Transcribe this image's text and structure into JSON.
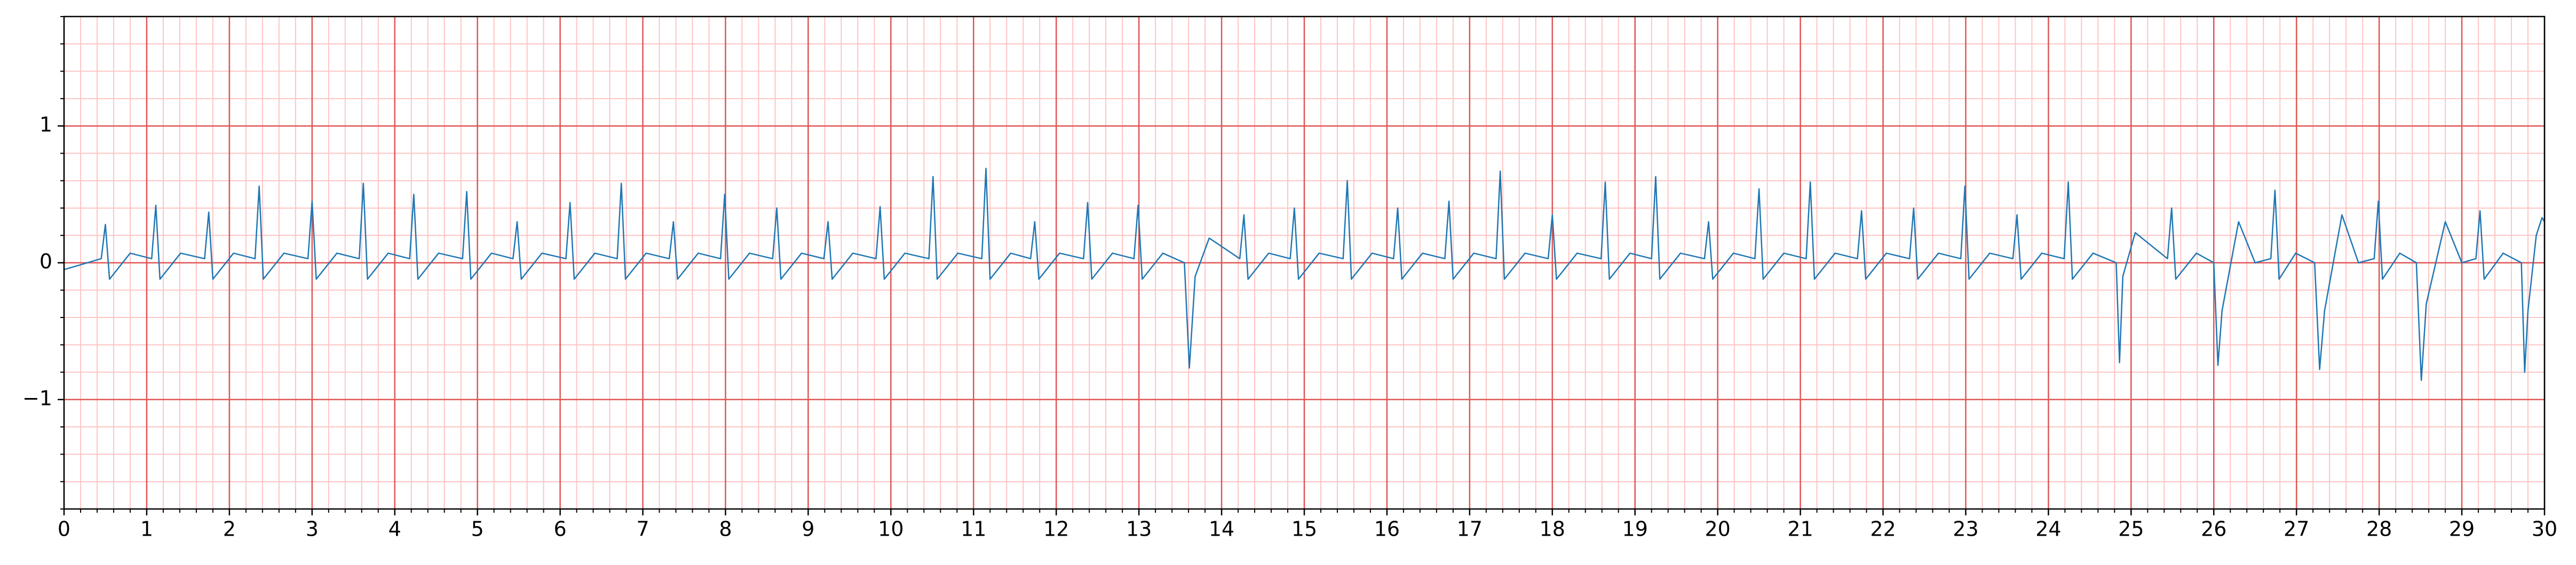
{
  "chart_data": {
    "type": "line",
    "color": "#1f77b4",
    "xlim": [
      0,
      30
    ],
    "ylim": [
      -1.8,
      1.8
    ],
    "xticks": [
      0,
      1,
      2,
      3,
      4,
      5,
      6,
      7,
      8,
      9,
      10,
      11,
      12,
      13,
      14,
      15,
      16,
      17,
      18,
      19,
      20,
      21,
      22,
      23,
      24,
      25,
      26,
      27,
      28,
      29,
      30
    ],
    "yticks": [
      {
        "value": -1,
        "label": "−1"
      },
      0,
      1
    ],
    "grid": true,
    "grid_color": "#e05555",
    "minor_grid": {
      "x": 0.2,
      "y": 0.2,
      "color": "#ffc4c4"
    },
    "x": [
      0,
      0.45,
      0.5,
      0.55,
      0.8,
      1.06,
      1.11,
      1.16,
      1.41,
      1.7,
      1.75,
      1.8,
      2.05,
      2.31,
      2.36,
      2.41,
      2.66,
      2.95,
      3,
      3.05,
      3.3,
      3.57,
      3.62,
      3.67,
      3.92,
      4.18,
      4.23,
      4.28,
      4.53,
      4.82,
      4.87,
      4.92,
      5.17,
      5.43,
      5.48,
      5.53,
      5.78,
      6.07,
      6.12,
      6.17,
      6.42,
      6.69,
      6.74,
      6.79,
      7.04,
      7.32,
      7.37,
      7.42,
      7.67,
      7.94,
      7.99,
      8.04,
      8.29,
      8.57,
      8.62,
      8.67,
      8.92,
      9.19,
      9.24,
      9.29,
      9.54,
      9.82,
      9.87,
      9.92,
      10.17,
      10.46,
      10.51,
      10.56,
      10.81,
      11.1,
      11.15,
      11.2,
      11.45,
      11.69,
      11.74,
      11.79,
      12.04,
      12.33,
      12.38,
      12.43,
      12.68,
      12.94,
      12.99,
      13.04,
      13.29,
      13.55,
      13.61,
      13.68,
      13.85,
      14.22,
      14.27,
      14.32,
      14.57,
      14.83,
      14.88,
      14.93,
      15.18,
      15.47,
      15.52,
      15.57,
      15.82,
      16.08,
      16.13,
      16.18,
      16.43,
      16.7,
      16.75,
      16.8,
      17.05,
      17.32,
      17.37,
      17.42,
      17.67,
      17.95,
      18,
      18.05,
      18.3,
      18.59,
      18.64,
      18.69,
      18.94,
      19.2,
      19.25,
      19.3,
      19.55,
      19.84,
      19.89,
      19.94,
      20.19,
      20.45,
      20.5,
      20.55,
      20.8,
      21.07,
      21.12,
      21.17,
      21.42,
      21.69,
      21.74,
      21.79,
      22.04,
      22.32,
      22.37,
      22.42,
      22.67,
      22.94,
      22.99,
      23.04,
      23.29,
      23.57,
      23.62,
      23.67,
      23.92,
      24.19,
      24.24,
      24.29,
      24.54,
      24.82,
      24.86,
      24.9,
      25.05,
      25.44,
      25.49,
      25.54,
      25.79,
      26,
      26.05,
      26.1,
      26.3,
      26.5,
      26.69,
      26.74,
      26.79,
      26.99,
      27.22,
      27.28,
      27.34,
      27.55,
      27.75,
      27.94,
      27.99,
      28.04,
      28.25,
      28.45,
      28.51,
      28.57,
      28.8,
      29,
      29.17,
      29.22,
      29.27,
      29.5,
      29.72,
      29.76,
      29.8,
      29.9,
      29.97,
      30
    ],
    "values": [
      -0.05,
      0.03,
      0.28,
      -0.12,
      0.07,
      0.03,
      0.42,
      -0.12,
      0.07,
      0.03,
      0.37,
      -0.12,
      0.07,
      0.03,
      0.56,
      -0.12,
      0.07,
      0.03,
      0.45,
      -0.12,
      0.07,
      0.03,
      0.58,
      -0.12,
      0.07,
      0.03,
      0.5,
      -0.12,
      0.07,
      0.03,
      0.52,
      -0.12,
      0.07,
      0.03,
      0.3,
      -0.12,
      0.07,
      0.03,
      0.44,
      -0.12,
      0.07,
      0.03,
      0.58,
      -0.12,
      0.07,
      0.03,
      0.3,
      -0.12,
      0.07,
      0.03,
      0.5,
      -0.12,
      0.07,
      0.03,
      0.4,
      -0.12,
      0.07,
      0.03,
      0.3,
      -0.12,
      0.07,
      0.03,
      0.41,
      -0.12,
      0.07,
      0.03,
      0.63,
      -0.12,
      0.07,
      0.03,
      0.69,
      -0.12,
      0.07,
      0.03,
      0.3,
      -0.12,
      0.07,
      0.03,
      0.44,
      -0.12,
      0.07,
      0.03,
      0.42,
      -0.12,
      0.07,
      0,
      -0.77,
      -0.1,
      0.18,
      0.03,
      0.35,
      -0.12,
      0.07,
      0.03,
      0.4,
      -0.12,
      0.07,
      0.03,
      0.6,
      -0.12,
      0.07,
      0.03,
      0.4,
      -0.12,
      0.07,
      0.03,
      0.45,
      -0.12,
      0.07,
      0.03,
      0.67,
      -0.12,
      0.07,
      0.03,
      0.35,
      -0.12,
      0.07,
      0.03,
      0.59,
      -0.12,
      0.07,
      0.03,
      0.63,
      -0.12,
      0.07,
      0.03,
      0.3,
      -0.12,
      0.07,
      0.03,
      0.54,
      -0.12,
      0.07,
      0.03,
      0.59,
      -0.12,
      0.07,
      0.03,
      0.38,
      -0.12,
      0.07,
      0.03,
      0.4,
      -0.12,
      0.07,
      0.03,
      0.56,
      -0.12,
      0.07,
      0.03,
      0.35,
      -0.12,
      0.07,
      0.03,
      0.59,
      -0.12,
      0.07,
      0,
      -0.73,
      -0.1,
      0.22,
      0.03,
      0.4,
      -0.12,
      0.07,
      0,
      -0.75,
      -0.35,
      0.3,
      0,
      0.03,
      0.53,
      -0.12,
      0.07,
      0,
      -0.78,
      -0.35,
      0.35,
      0,
      0.03,
      0.45,
      -0.12,
      0.07,
      0,
      -0.86,
      -0.3,
      0.3,
      0,
      0.03,
      0.38,
      -0.12,
      0.07,
      0,
      -0.8,
      -0.35,
      0.2,
      0.33,
      0.3
    ]
  }
}
